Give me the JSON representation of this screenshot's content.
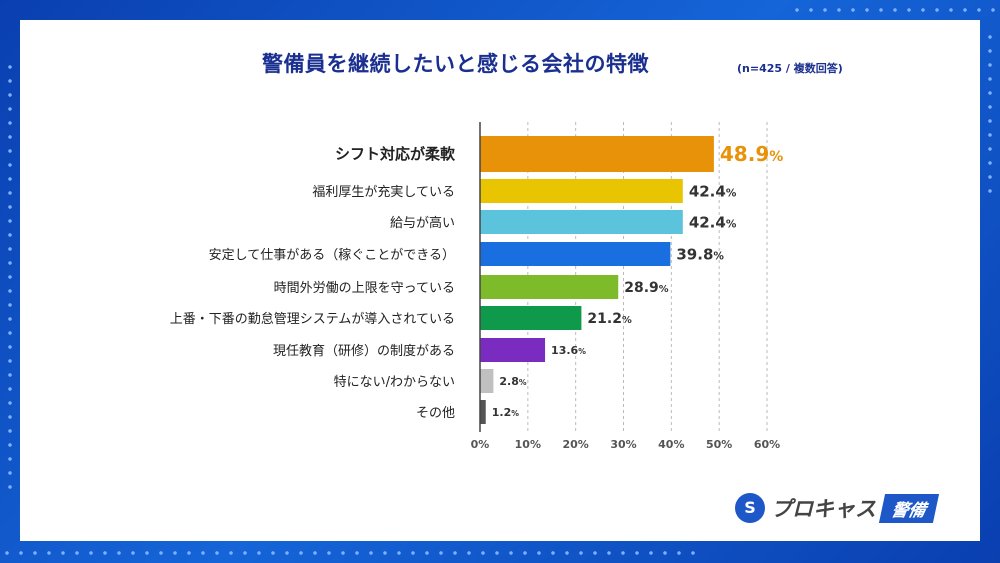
{
  "header": {
    "title": "警備員を継続したいと感じる会社の特徴",
    "subtitle": "(n=425 / 複数回答)"
  },
  "logo": {
    "name": "プロキャス",
    "tag": "警備"
  },
  "chart_data": {
    "type": "bar",
    "orientation": "horizontal",
    "categories": [
      "シフト対応が柔軟",
      "福利厚生が充実している",
      "給与が高い",
      "安定して仕事がある（稼ぐことができる）",
      "時間外労働の上限を守っている",
      "上番・下番の勤怠管理システムが導入されている",
      "現任教育（研修）の制度がある",
      "特にない/わからない",
      "その他"
    ],
    "values": [
      48.9,
      42.4,
      42.4,
      39.8,
      28.9,
      21.2,
      13.6,
      2.8,
      1.2
    ],
    "colors": [
      "#e8920a",
      "#e8c500",
      "#5bc3dc",
      "#1a6fe0",
      "#7dbb2a",
      "#0e9a4a",
      "#7b2cc0",
      "#c0c0c0",
      "#555555"
    ],
    "xlim": [
      0,
      60
    ],
    "ticks": [
      "0%",
      "10%",
      "20%",
      "30%",
      "40%",
      "50%",
      "60%"
    ],
    "grid": true,
    "value_suffix": "%"
  }
}
